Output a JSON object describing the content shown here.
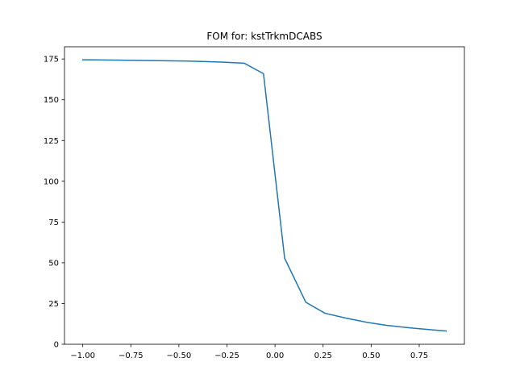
{
  "chart_data": {
    "type": "line",
    "title": "FOM for: kstTrkmDCABS",
    "xlabel": "",
    "ylabel": "",
    "xlim": [
      -1.095,
      0.985
    ],
    "ylim": [
      0,
      182.5
    ],
    "grid": false,
    "x_ticks": [
      -1.0,
      -0.75,
      -0.5,
      -0.25,
      0.0,
      0.25,
      0.5,
      0.75
    ],
    "x_tick_labels": [
      "−1.00",
      "−0.75",
      "−0.50",
      "−0.25",
      "0.00",
      "0.25",
      "0.50",
      "0.75"
    ],
    "y_ticks": [
      0,
      25,
      50,
      75,
      100,
      125,
      150,
      175
    ],
    "y_tick_labels": [
      "0",
      "25",
      "50",
      "75",
      "100",
      "125",
      "150",
      "175"
    ],
    "series": [
      {
        "color": "#1f77b4",
        "x": [
          -1.0,
          -0.8,
          -0.6,
          -0.45,
          -0.28,
          -0.16,
          -0.06,
          0.05,
          0.16,
          0.26,
          0.37,
          0.48,
          0.58,
          0.69,
          0.8,
          0.89
        ],
        "y": [
          174.5,
          174.3,
          174.0,
          173.7,
          173.1,
          172.4,
          166.0,
          52.8,
          25.8,
          19.0,
          16.0,
          13.4,
          11.6,
          10.2,
          9.0,
          8.1
        ]
      }
    ]
  }
}
